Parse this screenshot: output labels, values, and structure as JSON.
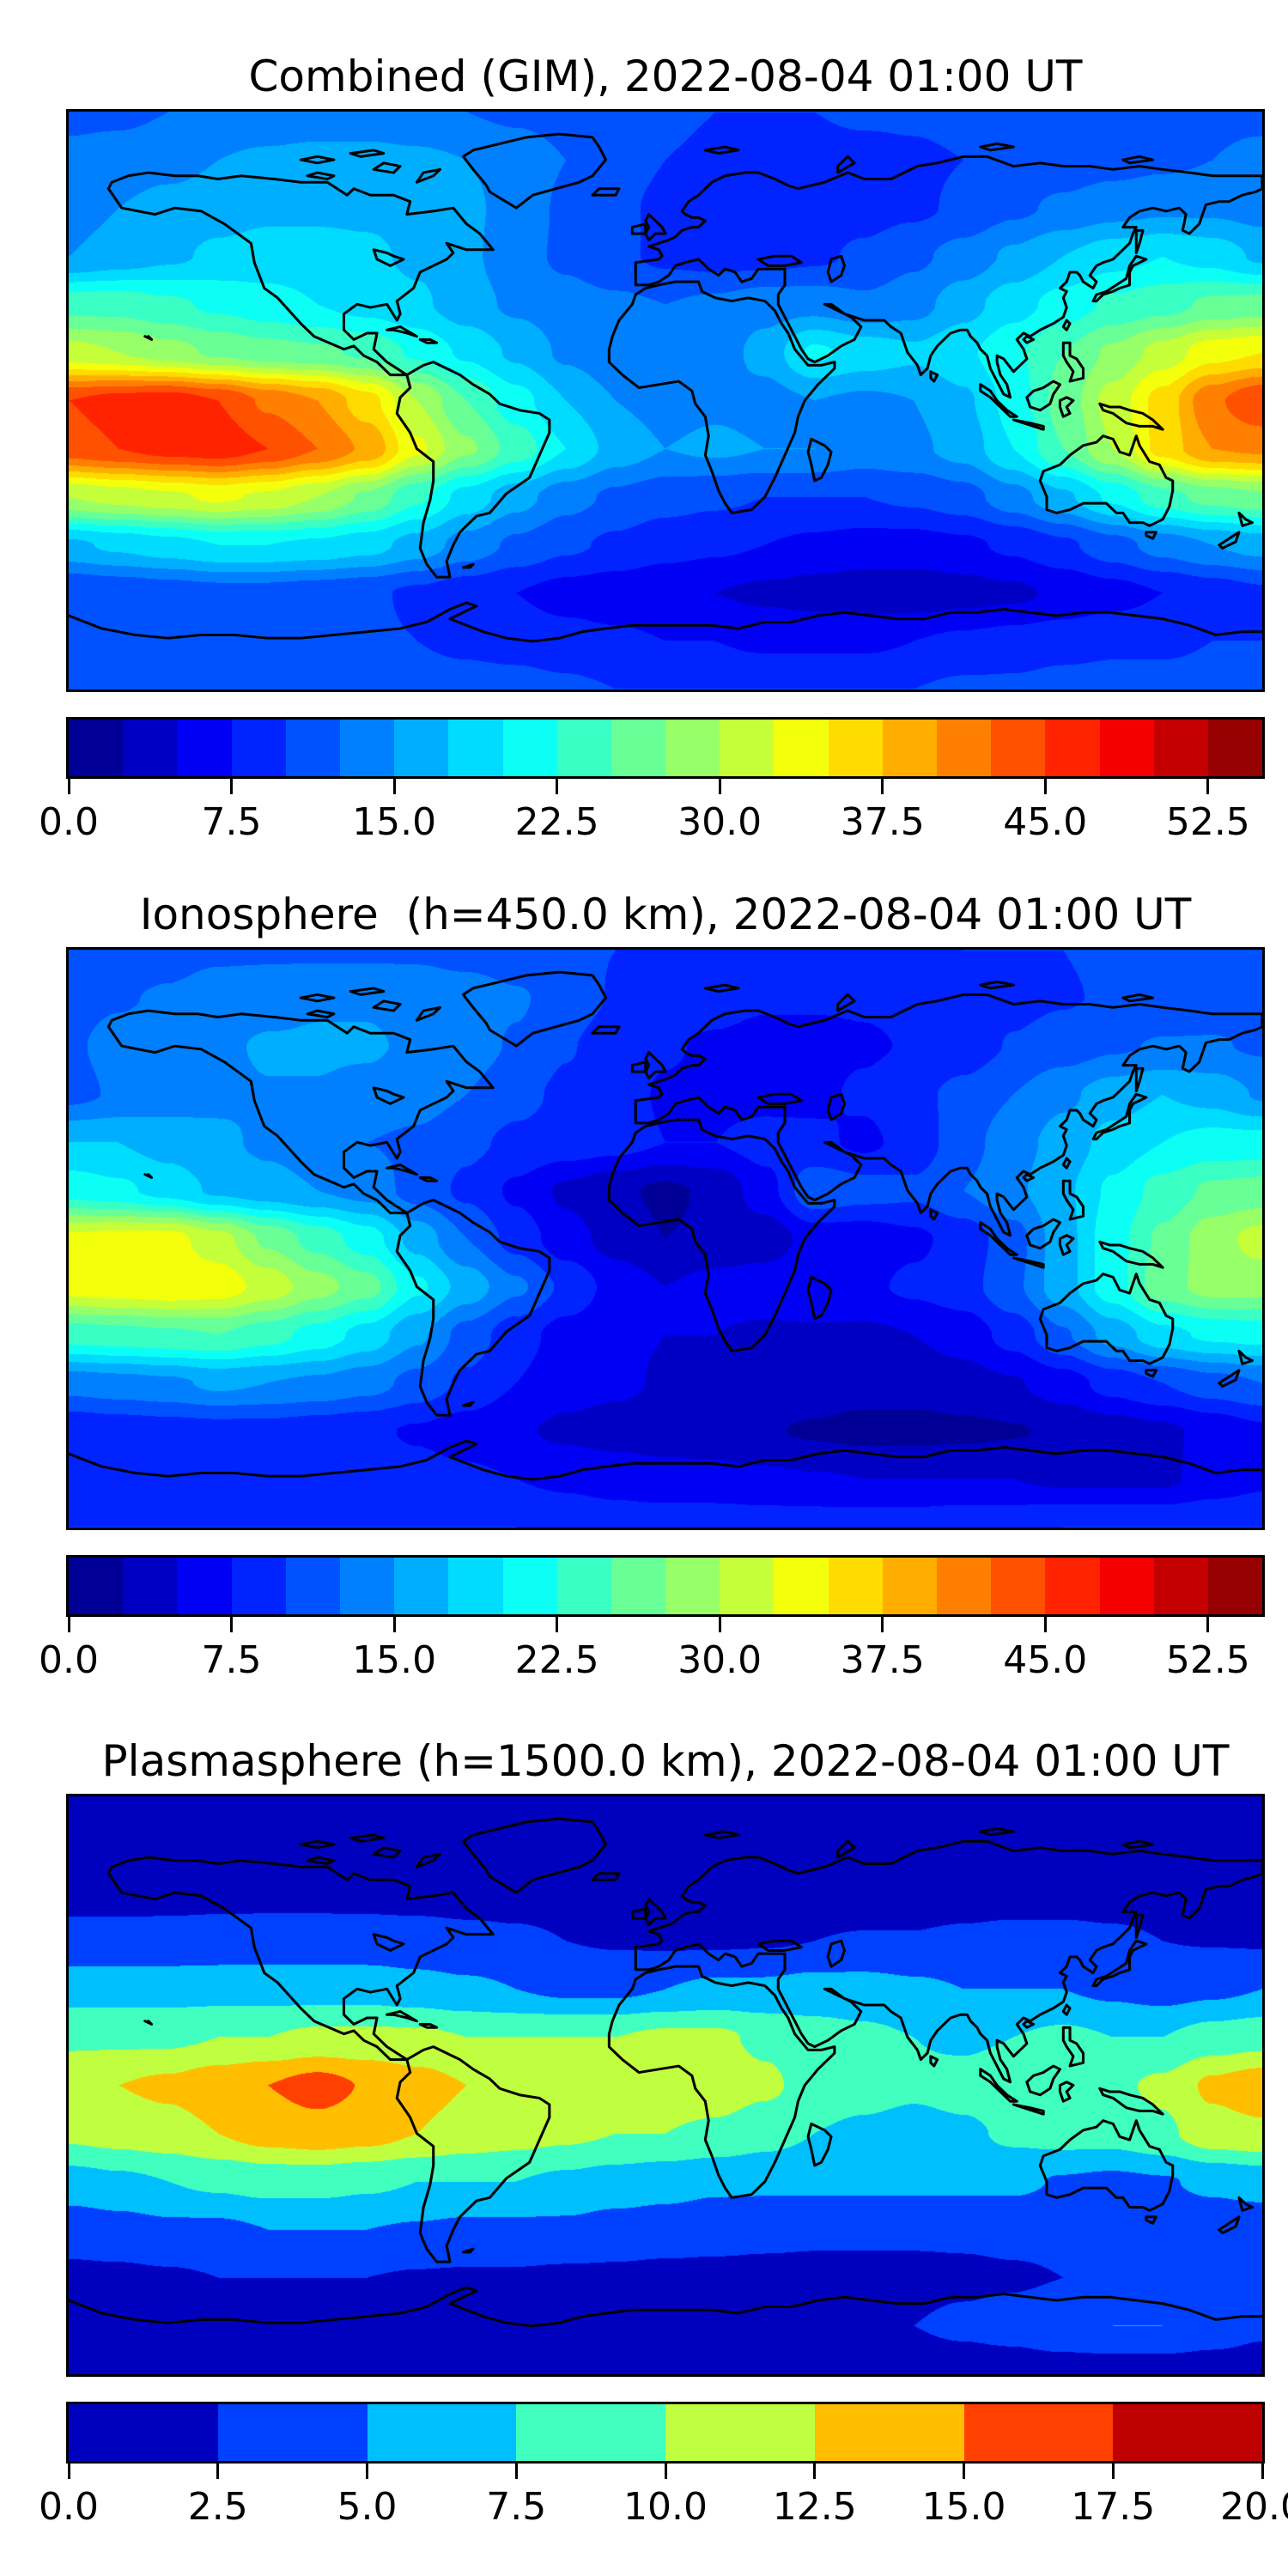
{
  "figure": {
    "background": "#ffffff",
    "frame_color": "#000000",
    "coastline_color": "#000000"
  },
  "chart_data": [
    {
      "type": "heatmap",
      "id": "combined-gim",
      "title": "Combined (GIM), 2022-08-04 01:00 UT",
      "projection": "equirectangular",
      "lon_range": [
        -180,
        180
      ],
      "lat_range": [
        -90,
        90
      ],
      "colormap": "jet",
      "value_range": [
        0,
        55
      ],
      "contour_step": 2.5,
      "colorbar_ticks": [
        0,
        7.5,
        15,
        22.5,
        30,
        37.5,
        45,
        52.5
      ],
      "colorbar_tick_labels": [
        "0.0",
        "7.5",
        "15.0",
        "22.5",
        "30.0",
        "37.5",
        "45.0",
        "52.5"
      ],
      "segment_colors": [
        "#000097",
        "#0000c5",
        "#0000f4",
        "#0023ff",
        "#0051ff",
        "#0080ff",
        "#00aeff",
        "#00dcff",
        "#0cfff4",
        "#3affc5",
        "#68ff97",
        "#97ff68",
        "#c5ff3a",
        "#f4ff0c",
        "#ffdc00",
        "#ffae00",
        "#ff8000",
        "#ff5100",
        "#ff2300",
        "#f40000",
        "#c50000",
        "#970000"
      ],
      "grid_lons": [
        -180,
        -165,
        -150,
        -135,
        -120,
        -105,
        -90,
        -75,
        -60,
        -45,
        -30,
        -15,
        0,
        15,
        30,
        45,
        60,
        75,
        90,
        105,
        120,
        135,
        150,
        165,
        180
      ],
      "grid_lats": [
        90,
        75,
        60,
        45,
        30,
        15,
        0,
        -15,
        -30,
        -45,
        -60,
        -75,
        -90
      ],
      "values": [
        [
          12,
          12,
          12.5,
          13,
          13,
          13,
          13,
          13,
          12.5,
          12,
          11.5,
          11,
          10.5,
          10,
          10,
          10,
          10.5,
          10.5,
          11,
          11,
          11,
          11.5,
          11.5,
          12,
          12
        ],
        [
          13,
          13.5,
          14,
          15,
          15.5,
          16,
          16,
          15.5,
          15,
          14,
          12.5,
          11,
          10,
          9.5,
          9,
          9,
          9,
          9.5,
          10,
          10.5,
          11,
          11.5,
          12,
          12.5,
          13
        ],
        [
          14,
          15,
          16,
          16.5,
          17,
          17,
          17,
          16.5,
          15.5,
          14,
          12,
          10.5,
          9.5,
          9,
          8.5,
          8.5,
          9,
          9.5,
          10.5,
          12,
          13,
          14,
          14.5,
          14.5,
          14
        ],
        [
          15,
          16,
          17,
          18,
          18.5,
          18.5,
          18,
          17,
          15.5,
          13.5,
          12,
          10.5,
          9.5,
          9,
          9,
          9.5,
          10.5,
          12,
          13.5,
          15.5,
          17.5,
          19,
          20,
          19,
          17
        ],
        [
          24,
          24,
          23,
          22,
          21,
          20,
          19,
          18,
          16,
          14.5,
          13.5,
          13,
          12.5,
          13,
          14,
          14,
          13,
          14,
          16.5,
          19,
          21,
          23,
          24,
          25.5,
          26
        ],
        [
          31,
          30,
          28.5,
          27,
          26,
          25.5,
          24.5,
          22,
          19.5,
          17,
          14.5,
          13,
          12.5,
          13.5,
          16,
          20.5,
          19,
          18,
          19.5,
          22,
          25,
          28,
          31,
          34,
          35
        ],
        [
          45,
          46,
          46.5,
          45,
          42,
          40,
          36,
          30,
          25,
          21,
          17.5,
          15,
          14,
          14.5,
          14,
          15,
          14.5,
          15,
          17,
          21,
          26,
          31,
          36,
          42,
          45
        ],
        [
          44,
          45,
          46,
          46.5,
          45,
          42.5,
          39.5,
          33,
          28,
          24,
          20,
          16.5,
          15,
          15.5,
          15,
          15,
          14,
          14.5,
          16,
          20,
          25,
          30,
          36,
          40,
          40.5
        ],
        [
          30,
          31,
          32,
          33,
          32,
          30,
          27,
          23,
          19,
          16,
          13.5,
          12,
          11,
          10.5,
          10,
          10,
          10,
          10.5,
          11.5,
          14,
          17,
          20.5,
          24,
          26,
          27
        ],
        [
          17,
          18,
          19,
          20,
          20,
          19.5,
          18.5,
          16.5,
          14,
          12,
          10.5,
          9.5,
          8.5,
          8,
          7.5,
          7,
          6.5,
          6.5,
          7,
          8,
          9.5,
          11.5,
          13.5,
          15,
          16
        ],
        [
          10,
          10.5,
          11,
          11.5,
          11.5,
          11,
          10.5,
          9.5,
          8.5,
          7.5,
          6.5,
          6,
          5.5,
          5,
          4.5,
          4,
          3.5,
          3.5,
          4,
          4.5,
          5.5,
          6.5,
          7.5,
          8.5,
          9.5
        ],
        [
          10,
          10,
          10.5,
          11,
          11,
          11,
          10.5,
          10,
          9.5,
          9,
          8.5,
          8,
          7.5,
          7.5,
          7,
          7,
          7,
          7.5,
          8,
          8.5,
          9,
          9.5,
          9.5,
          10,
          10
        ],
        [
          11,
          11,
          11,
          11,
          11,
          11,
          11,
          11,
          11,
          11,
          10.5,
          10,
          10,
          10,
          10,
          10,
          10,
          10,
          10.5,
          10.5,
          11,
          11,
          11,
          11,
          11
        ]
      ]
    },
    {
      "type": "heatmap",
      "id": "ionosphere",
      "title": "Ionosphere  (h=450.0 km), 2022-08-04 01:00 UT",
      "projection": "equirectangular",
      "lon_range": [
        -180,
        180
      ],
      "lat_range": [
        -90,
        90
      ],
      "colormap": "jet",
      "value_range": [
        0,
        55
      ],
      "contour_step": 2.5,
      "colorbar_ticks": [
        0,
        7.5,
        15,
        22.5,
        30,
        37.5,
        45,
        52.5
      ],
      "colorbar_tick_labels": [
        "0.0",
        "7.5",
        "15.0",
        "22.5",
        "30.0",
        "37.5",
        "45.0",
        "52.5"
      ],
      "segment_colors": [
        "#000097",
        "#0000c5",
        "#0000f4",
        "#0023ff",
        "#0051ff",
        "#0080ff",
        "#00aeff",
        "#00dcff",
        "#0cfff4",
        "#3affc5",
        "#68ff97",
        "#97ff68",
        "#c5ff3a",
        "#f4ff0c",
        "#ffdc00",
        "#ffae00",
        "#ff8000",
        "#ff5100",
        "#ff2300",
        "#f40000",
        "#c50000",
        "#970000"
      ],
      "grid_lons": [
        -180,
        -165,
        -150,
        -135,
        -120,
        -105,
        -90,
        -75,
        -60,
        -45,
        -30,
        -15,
        0,
        15,
        30,
        45,
        60,
        75,
        90,
        105,
        120,
        135,
        150,
        165,
        180
      ],
      "grid_lats": [
        90,
        75,
        60,
        45,
        30,
        15,
        0,
        -15,
        -30,
        -45,
        -60,
        -75,
        -90
      ],
      "values": [
        [
          11,
          11,
          11.5,
          12,
          12,
          12,
          12,
          12,
          11.5,
          11,
          10.5,
          10,
          9.5,
          9,
          9,
          9,
          9.5,
          9.5,
          10,
          10,
          10,
          10.5,
          10.5,
          11,
          11
        ],
        [
          11.8,
          12.3,
          12.8,
          13.8,
          14.3,
          14.8,
          14.8,
          14.3,
          13.8,
          12.8,
          11.3,
          9.8,
          8.8,
          8.3,
          7.8,
          7.8,
          7.8,
          8.3,
          8.8,
          9.3,
          9.8,
          10.3,
          10.8,
          11.3,
          11.8
        ],
        [
          12.2,
          13.2,
          14.2,
          14.7,
          15.2,
          15.2,
          15.2,
          14.7,
          13.7,
          12.2,
          10.2,
          8.7,
          7.7,
          7.2,
          6.7,
          6.7,
          7.2,
          7.7,
          8.7,
          10.2,
          11.2,
          12.2,
          12.7,
          12.7,
          12.2
        ],
        [
          11.8,
          12.8,
          13.7,
          14.5,
          14.9,
          14.9,
          14.5,
          13.7,
          12.5,
          10.7,
          9.5,
          8.2,
          7.3,
          6.8,
          6.7,
          7,
          7.9,
          9.4,
          10.7,
          12.5,
          14.5,
          16.2,
          17.5,
          16.6,
          14.7
        ],
        [
          17.5,
          17.5,
          16.5,
          15.5,
          14.5,
          13.5,
          12.5,
          12,
          10.5,
          9.5,
          9,
          8.5,
          7.5,
          7.5,
          8.5,
          8,
          7,
          8.5,
          11.5,
          14,
          16,
          18.5,
          20,
          21,
          21
        ],
        [
          21.5,
          20.5,
          19,
          17,
          16,
          15,
          14,
          11.5,
          9.5,
          7,
          4.5,
          3,
          2,
          3,
          6.5,
          12,
          11,
          10.5,
          12.5,
          14.5,
          17,
          20.5,
          23.5,
          25.5,
          26
        ],
        [
          33,
          33.5,
          33.5,
          31,
          27,
          24,
          21.2,
          16.5,
          12.5,
          9,
          6,
          4,
          2.5,
          3,
          3.5,
          6,
          6,
          7,
          8.5,
          11.5,
          16.5,
          21.5,
          25.5,
          29,
          31
        ],
        [
          33.5,
          34,
          34.5,
          34,
          31.5,
          28.5,
          26,
          20.5,
          16.5,
          13,
          9.5,
          6.5,
          5,
          6,
          6.5,
          7.5,
          7,
          8,
          9,
          12,
          16.5,
          21.5,
          26.5,
          28.5,
          28.5
        ],
        [
          23.5,
          24,
          24.5,
          25,
          23.5,
          21.5,
          19,
          15.5,
          11.5,
          8.5,
          6.5,
          5.5,
          5,
          5,
          4.5,
          4.5,
          4.5,
          5,
          6,
          8.5,
          12.2,
          16,
          19.2,
          20.5,
          21
        ],
        [
          13.5,
          14,
          14.5,
          15.5,
          15,
          14.5,
          13.5,
          11.7,
          9.5,
          7.5,
          6,
          5.5,
          4.7,
          4.5,
          4.3,
          4,
          3.5,
          3.5,
          4,
          4.8,
          6.3,
          8.5,
          10,
          11.5,
          12.5
        ],
        [
          8,
          8.5,
          8.8,
          9,
          9,
          8.5,
          8,
          7.2,
          6.3,
          5.3,
          4.5,
          4,
          3.7,
          3.2,
          2.7,
          2.2,
          1.7,
          1.7,
          2,
          2.3,
          3,
          3.7,
          4.5,
          5.7,
          7
        ],
        [
          8.5,
          8.5,
          9,
          9.5,
          9.5,
          9.5,
          9,
          8.5,
          8,
          7.5,
          7,
          6.5,
          6,
          6,
          5.5,
          5.2,
          5,
          5,
          5,
          5,
          4.5,
          4.5,
          4.5,
          6,
          7
        ],
        [
          10,
          10,
          10,
          10,
          10,
          10,
          10,
          10,
          10,
          10,
          9.5,
          9,
          9,
          9,
          9,
          9,
          9,
          9,
          9.5,
          9.5,
          10,
          10,
          10,
          10,
          10
        ]
      ]
    },
    {
      "type": "heatmap",
      "id": "plasmasphere",
      "title": "Plasmasphere (h=1500.0 km), 2022-08-04 01:00 UT",
      "projection": "equirectangular",
      "lon_range": [
        -180,
        180
      ],
      "lat_range": [
        -90,
        90
      ],
      "colormap": "jet",
      "value_range": [
        0,
        20
      ],
      "contour_step": 2.5,
      "colorbar_ticks": [
        0,
        2.5,
        5,
        7.5,
        10,
        12.5,
        15,
        17.5,
        20
      ],
      "colorbar_tick_labels": [
        "0.0",
        "2.5",
        "5.0",
        "7.5",
        "10.0",
        "12.5",
        "15.0",
        "17.5",
        "20.0"
      ],
      "segment_colors": [
        "#0000bf",
        "#0040ff",
        "#00bfff",
        "#40ffbf",
        "#bfff40",
        "#ffbf00",
        "#ff4000",
        "#bf0000"
      ],
      "grid_lons": [
        -180,
        -165,
        -150,
        -135,
        -120,
        -105,
        -90,
        -75,
        -60,
        -45,
        -30,
        -15,
        0,
        15,
        30,
        45,
        60,
        75,
        90,
        105,
        120,
        135,
        150,
        165,
        180
      ],
      "grid_lats": [
        90,
        75,
        60,
        45,
        30,
        15,
        0,
        -15,
        -30,
        -45,
        -60,
        -75,
        -90
      ],
      "values": [
        [
          1,
          1,
          1,
          1,
          1,
          1,
          1,
          1,
          1,
          1,
          1,
          1,
          1,
          1,
          1,
          1,
          1,
          1,
          1,
          1,
          1,
          1,
          1,
          1,
          1
        ],
        [
          1.2,
          1.2,
          1.2,
          1.2,
          1.2,
          1.2,
          1.2,
          1.2,
          1.2,
          1.2,
          1.2,
          1.2,
          1.2,
          1.2,
          1.2,
          1.2,
          1.2,
          1.2,
          1.2,
          1.2,
          1.2,
          1.2,
          1.2,
          1.2,
          1.2
        ],
        [
          1.8,
          1.8,
          1.8,
          1.8,
          1.8,
          1.8,
          1.8,
          1.8,
          1.8,
          1.8,
          1.8,
          1.8,
          1.8,
          1.8,
          1.8,
          1.8,
          1.8,
          1.8,
          1.8,
          1.8,
          1.8,
          1.8,
          1.8,
          1.8,
          1.8
        ],
        [
          3.2,
          3.2,
          3.3,
          3.5,
          3.6,
          3.6,
          3.5,
          3.3,
          3,
          2.8,
          2.5,
          2.3,
          2.2,
          2.2,
          2.3,
          2.5,
          2.6,
          2.6,
          2.8,
          3,
          3,
          2.8,
          2.5,
          2.4,
          2.3
        ],
        [
          6.5,
          6.5,
          6.5,
          6.5,
          6.5,
          6.5,
          6.5,
          6,
          5.5,
          5,
          4.5,
          4.5,
          5,
          5.5,
          5.5,
          6,
          6,
          5.5,
          5,
          5,
          5,
          4.5,
          4,
          4.5,
          5
        ],
        [
          9.5,
          9.5,
          9.5,
          10,
          10,
          10.5,
          10.5,
          10.5,
          10,
          10,
          10,
          10,
          10.5,
          10.5,
          9.5,
          8.5,
          8,
          7.5,
          7,
          7.5,
          8,
          7.5,
          7.5,
          8.5,
          9
        ],
        [
          12,
          12.5,
          13,
          14,
          15,
          16,
          14.8,
          13.5,
          12.5,
          12,
          11.5,
          11,
          11.5,
          11.5,
          10.5,
          9,
          8.5,
          8,
          8.5,
          9.5,
          9.5,
          9.5,
          10.5,
          13,
          14
        ],
        [
          10.5,
          11,
          11.5,
          12.5,
          13.5,
          14,
          13.5,
          12.5,
          11.5,
          11,
          10.5,
          10,
          10,
          9.5,
          8.5,
          7.5,
          7,
          6.5,
          7,
          8,
          8.5,
          8.5,
          9.5,
          11.5,
          12
        ],
        [
          6.5,
          7,
          7.5,
          8,
          8.5,
          8.5,
          8,
          7.5,
          7.5,
          7.5,
          7,
          6.5,
          6,
          5.5,
          5.5,
          5.5,
          5.5,
          5.5,
          5.5,
          5.5,
          4.8,
          4.5,
          4.8,
          5.5,
          6
        ],
        [
          3.5,
          4,
          4.5,
          4.5,
          5,
          5,
          5,
          4.8,
          4.5,
          4.5,
          4.5,
          4,
          3.8,
          3.5,
          3.2,
          3,
          3,
          3,
          3,
          3.2,
          3.2,
          3,
          3.5,
          3.5,
          3.5
        ],
        [
          2,
          2,
          2.2,
          2.5,
          2.5,
          2.5,
          2.5,
          2.3,
          2.2,
          2.2,
          2,
          2,
          1.8,
          1.8,
          1.8,
          1.8,
          1.8,
          1.8,
          2,
          2.2,
          2.5,
          2.8,
          3,
          2.8,
          2.5
        ],
        [
          1.5,
          1.5,
          1.5,
          1.5,
          1.5,
          1.5,
          1.5,
          1.5,
          1.5,
          1.5,
          1.5,
          1.5,
          1.5,
          1.5,
          1.5,
          1.8,
          2,
          2.5,
          3,
          3.5,
          4.5,
          5,
          5,
          4,
          3
        ],
        [
          1,
          1,
          1,
          1,
          1,
          1,
          1,
          1,
          1,
          1,
          1,
          1,
          1,
          1,
          1,
          1,
          1,
          1,
          1,
          1,
          1,
          1,
          1,
          1,
          1
        ]
      ]
    }
  ]
}
